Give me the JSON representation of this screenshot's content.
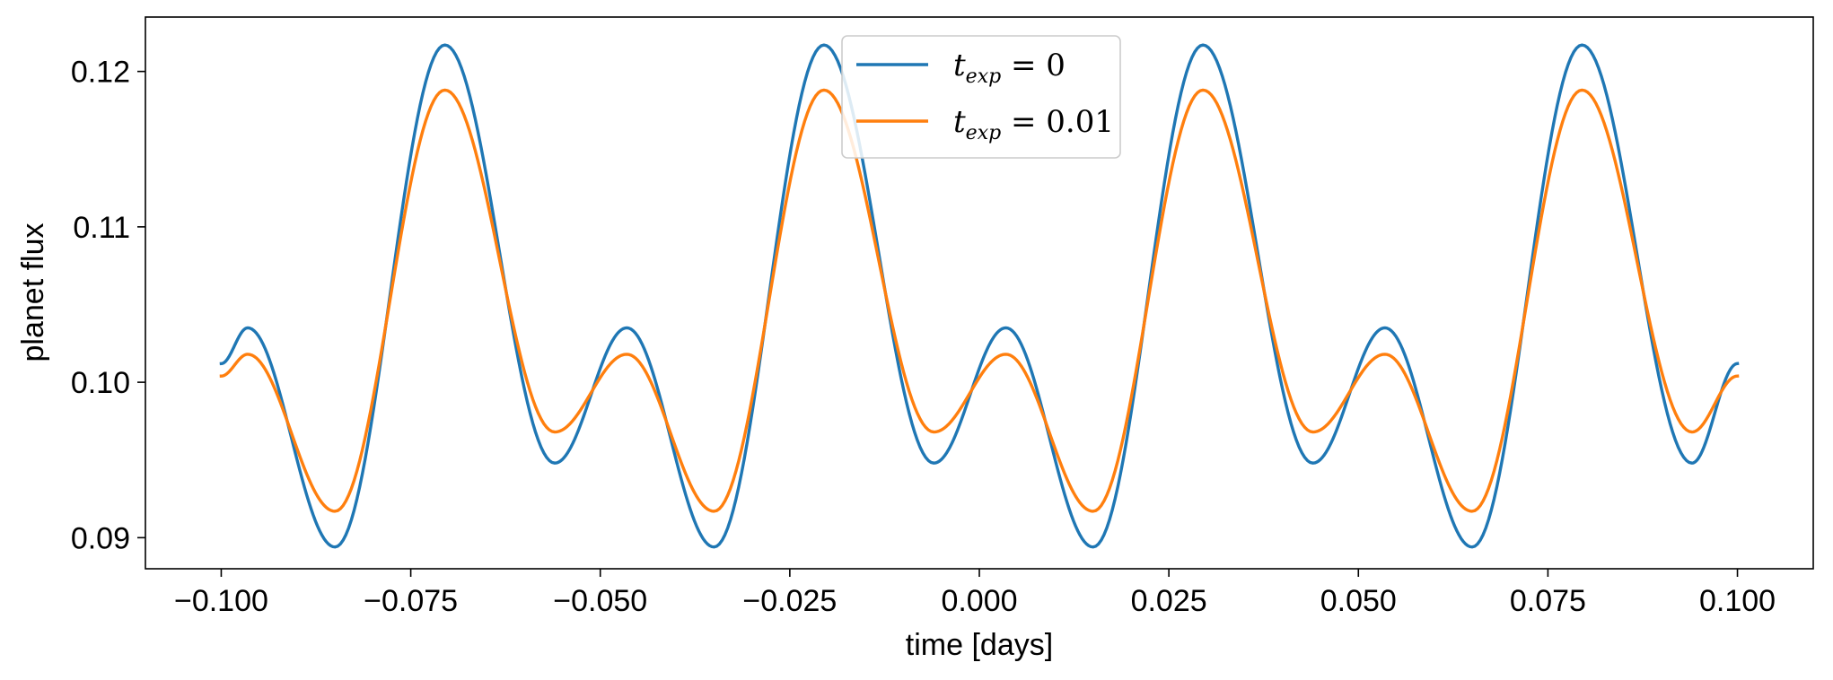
{
  "chart_data": {
    "type": "line",
    "title": "",
    "xlabel": "time [days]",
    "ylabel": "planet flux",
    "xlim": [
      -0.11,
      0.11
    ],
    "ylim": [
      0.088,
      0.1235
    ],
    "xticks": [
      -0.1,
      -0.075,
      -0.05,
      -0.025,
      0.0,
      0.025,
      0.05,
      0.075,
      0.1
    ],
    "xtick_labels": [
      "−0.100",
      "−0.075",
      "−0.050",
      "−0.025",
      "0.000",
      "0.025",
      "0.050",
      "0.075",
      "0.100"
    ],
    "yticks": [
      0.09,
      0.1,
      0.11,
      0.12
    ],
    "ytick_labels": [
      "0.09",
      "0.10",
      "0.11",
      "0.12"
    ],
    "grid": false,
    "legend_position": "top-center",
    "series": [
      {
        "name": "t_exp = 0",
        "legend_main": "t",
        "legend_sub": "exp",
        "legend_rest": " = 0",
        "color": "#1f77b4",
        "x": [
          -0.1,
          -0.0965,
          -0.085,
          -0.0705,
          -0.056,
          -0.0465,
          -0.035,
          -0.0205,
          -0.006,
          0.0035,
          0.015,
          0.0295,
          0.044,
          0.0535,
          0.065,
          0.0795,
          0.094,
          0.1
        ],
        "y": [
          0.1012,
          0.1035,
          0.0894,
          0.1217,
          0.0948,
          0.1035,
          0.0894,
          0.1217,
          0.0948,
          0.1035,
          0.0894,
          0.1217,
          0.0948,
          0.1035,
          0.0894,
          0.1217,
          0.0948,
          0.1012
        ]
      },
      {
        "name": "t_exp = 0.01",
        "legend_main": "t",
        "legend_sub": "exp",
        "legend_rest": " = 0.01",
        "color": "#ff7f0e",
        "x": [
          -0.1,
          -0.0965,
          -0.085,
          -0.0705,
          -0.056,
          -0.0465,
          -0.035,
          -0.0205,
          -0.006,
          0.0035,
          0.015,
          0.0295,
          0.044,
          0.0535,
          0.065,
          0.0795,
          0.094,
          0.1
        ],
        "y": [
          0.1004,
          0.1018,
          0.0917,
          0.1188,
          0.0968,
          0.1018,
          0.0917,
          0.1188,
          0.0968,
          0.1018,
          0.0917,
          0.1188,
          0.0968,
          0.1018,
          0.0917,
          0.1188,
          0.0968,
          0.1004
        ]
      }
    ]
  }
}
